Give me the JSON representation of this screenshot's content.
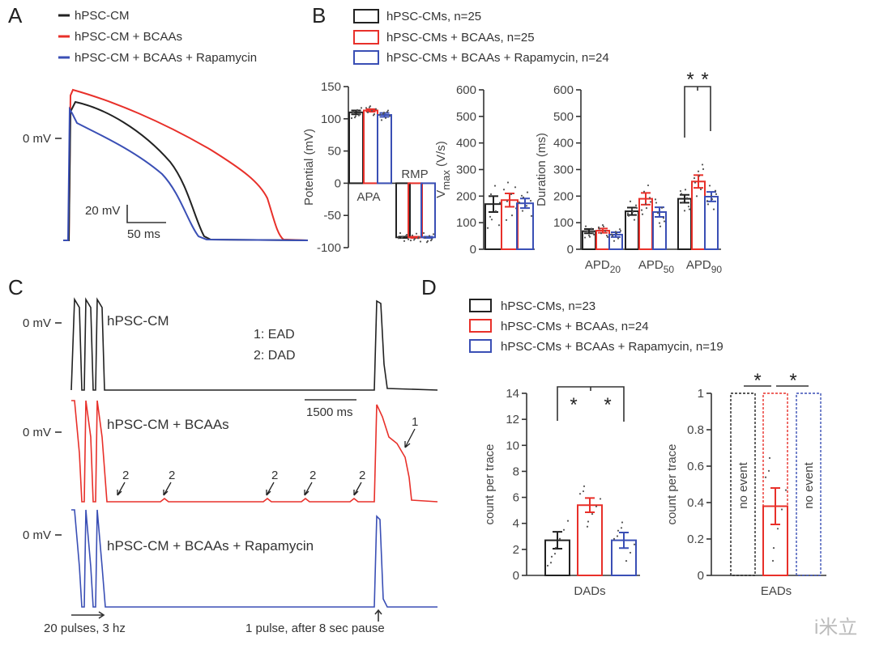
{
  "panels": {
    "a": "A",
    "b": "B",
    "c": "C",
    "d": "D"
  },
  "colors": {
    "control": "#222222",
    "bcaa": "#e8302a",
    "rapamycin": "#3a4fb5"
  },
  "panel_a": {
    "legend": [
      "hPSC-CM",
      "hPSC-CM + BCAAs",
      "hPSC-CM + BCAAs + Rapamycin"
    ],
    "zero_label": "0 mV",
    "scale_v": "20 mV",
    "scale_t": "50 ms"
  },
  "panel_b": {
    "legend": [
      "hPSC-CMs,  n=25",
      "hPSC-CMs + BCAAs, n=25",
      "hPSC-CMs + BCAAs + Rapamycin, n=24"
    ]
  },
  "panel_c": {
    "zero_label": "0 mV",
    "trace_labels": [
      "hPSC-CM",
      "hPSC-CM + BCAAs",
      "hPSC-CM + BCAAs + Rapamycin"
    ],
    "key": [
      "1: EAD",
      "2: DAD"
    ],
    "scale_t": "1500 ms",
    "arrow_labels": [
      "1",
      "2"
    ],
    "stim_label": "20 pulses, 3 hz",
    "pause_label": "1 pulse, after 8 sec pause"
  },
  "panel_d": {
    "legend": [
      "hPSC-CMs,  n=23",
      "hPSC-CMs + BCAAs, n=24",
      "hPSC-CMs + BCAAs + Rapamycin, n=19"
    ],
    "no_event": "no event"
  },
  "watermark": "i米立",
  "chart_data": [
    {
      "type": "bar",
      "title": "",
      "ylabel": "Potential (mV)",
      "ylim": [
        -100,
        150
      ],
      "yticks": [
        "-100",
        "-50",
        "0",
        "50",
        "100",
        "150"
      ],
      "ytick_values": [
        -100,
        -50,
        0,
        50,
        100,
        150
      ],
      "categories": [
        "APA",
        "RMP"
      ],
      "series": [
        {
          "name": "hPSC-CMs",
          "values": [
            110,
            -84
          ],
          "errors": [
            3,
            1
          ]
        },
        {
          "name": "hPSC-CMs + BCAAs",
          "values": [
            113,
            -84
          ],
          "errors": [
            2,
            1
          ]
        },
        {
          "name": "hPSC-CMs + BCAAs + Rapamycin",
          "values": [
            106,
            -84
          ],
          "errors": [
            3,
            1
          ]
        }
      ]
    },
    {
      "type": "bar",
      "ylabel": "Vmax (V/s)",
      "ylim": [
        0,
        600
      ],
      "yticks": [
        "0",
        "100",
        "200",
        "300",
        "400",
        "500",
        "600"
      ],
      "ytick_values": [
        0,
        100,
        200,
        300,
        400,
        500,
        600
      ],
      "categories": [
        ""
      ],
      "series": [
        {
          "name": "hPSC-CMs",
          "values": [
            170
          ],
          "errors": [
            30
          ]
        },
        {
          "name": "hPSC-CMs + BCAAs",
          "values": [
            185
          ],
          "errors": [
            25
          ]
        },
        {
          "name": "hPSC-CMs + BCAAs + Rapamycin",
          "values": [
            173
          ],
          "errors": [
            18
          ]
        }
      ]
    },
    {
      "type": "bar",
      "ylabel": "Duration (ms)",
      "ylim": [
        0,
        600
      ],
      "yticks": [
        "0",
        "100",
        "200",
        "300",
        "400",
        "500",
        "600"
      ],
      "ytick_values": [
        0,
        100,
        200,
        300,
        400,
        500,
        600
      ],
      "categories": [
        "APD20",
        "APD50",
        "APD90"
      ],
      "series": [
        {
          "name": "hPSC-CMs",
          "values": [
            68,
            143,
            190
          ],
          "errors": [
            8,
            14,
            15
          ]
        },
        {
          "name": "hPSC-CMs + BCAAs",
          "values": [
            70,
            190,
            255
          ],
          "errors": [
            8,
            22,
            24
          ]
        },
        {
          "name": "hPSC-CMs + BCAAs + Rapamycin",
          "values": [
            55,
            140,
            198
          ],
          "errors": [
            9,
            18,
            18
          ]
        }
      ],
      "annotations": [
        "*",
        "*"
      ]
    },
    {
      "type": "bar",
      "ylabel": "count per trace",
      "xlabel": "DADs",
      "ylim": [
        0,
        14
      ],
      "yticks": [
        "0",
        "2",
        "4",
        "6",
        "8",
        "10",
        "12",
        "14"
      ],
      "ytick_values": [
        0,
        2,
        4,
        6,
        8,
        10,
        12,
        14
      ],
      "categories": [
        ""
      ],
      "series": [
        {
          "name": "hPSC-CMs",
          "values": [
            2.7
          ],
          "errors": [
            0.65
          ]
        },
        {
          "name": "hPSC-CMs + BCAAs",
          "values": [
            5.4
          ],
          "errors": [
            0.55
          ]
        },
        {
          "name": "hPSC-CMs + BCAAs + Rapamycin",
          "values": [
            2.7
          ],
          "errors": [
            0.6
          ]
        }
      ],
      "annotations": [
        "*",
        "*"
      ]
    },
    {
      "type": "bar",
      "ylabel": "count per trace",
      "xlabel": "EADs",
      "ylim": [
        0,
        1
      ],
      "yticks": [
        "0",
        "0.2",
        "0.4",
        "0.6",
        "0.8",
        "1"
      ],
      "ytick_values": [
        0,
        0.2,
        0.4,
        0.6,
        0.8,
        1
      ],
      "categories": [
        ""
      ],
      "series": [
        {
          "name": "hPSC-CMs",
          "values": [
            0
          ],
          "errors": [
            0
          ]
        },
        {
          "name": "hPSC-CMs + BCAAs",
          "values": [
            0.38
          ],
          "errors": [
            0.1
          ]
        },
        {
          "name": "hPSC-CMs + BCAAs + Rapamycin",
          "values": [
            0
          ],
          "errors": [
            0
          ]
        }
      ],
      "annotations": [
        "*",
        "*"
      ]
    }
  ]
}
